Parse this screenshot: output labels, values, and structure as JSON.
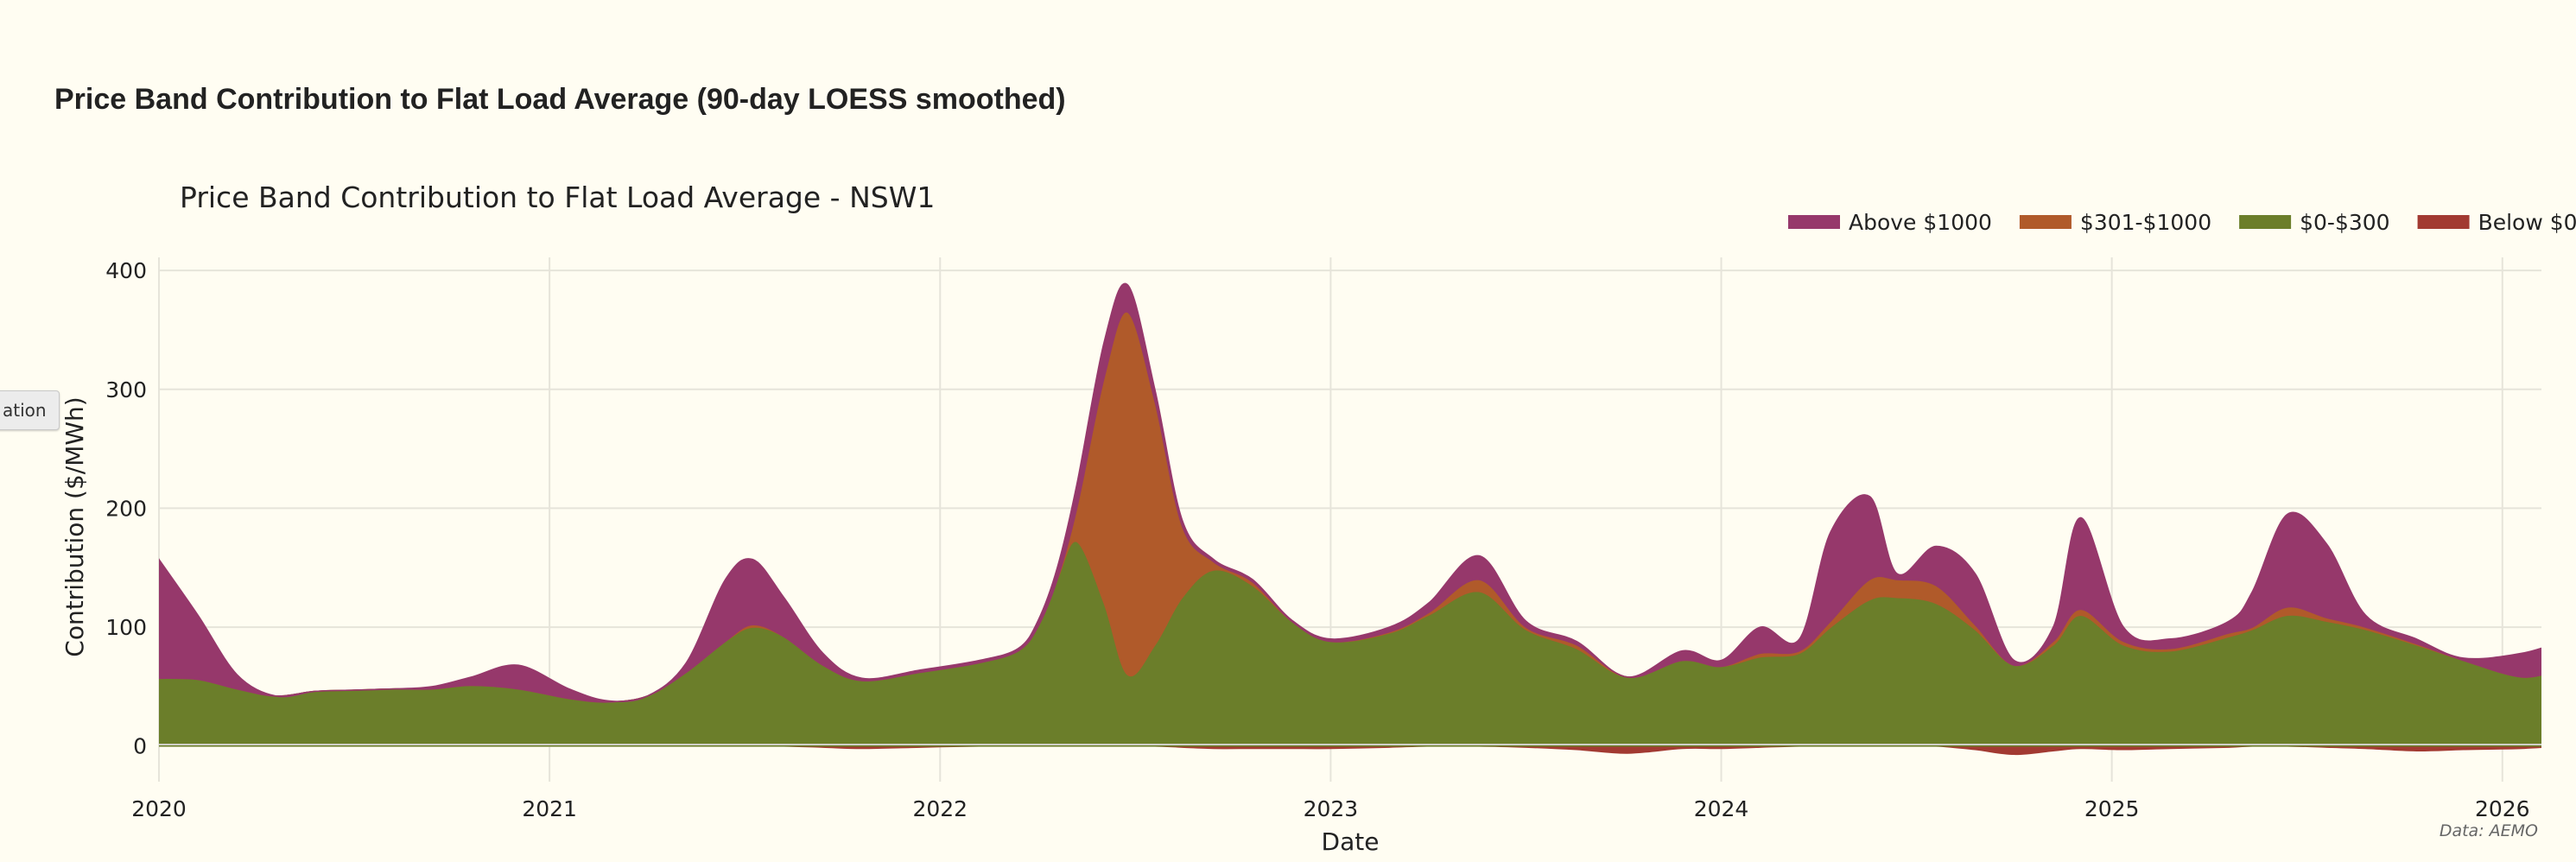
{
  "page": {
    "heading": "Price Band Contribution to Flat Load Average (90-day LOESS smoothed)",
    "side_button": "ation"
  },
  "chart_data": {
    "type": "area",
    "stacked": true,
    "title": "Price Band Contribution to Flat Load Average - NSW1",
    "xlabel": "Date",
    "ylabel": "Contribution ($/MWh)",
    "source": "Data: AEMO",
    "xlim": [
      2020,
      2026.1
    ],
    "ylim": [
      -30,
      411
    ],
    "grid": true,
    "legend_position": "top-right",
    "x_ticks": [
      {
        "v": 2020,
        "label": "2020"
      },
      {
        "v": 2021,
        "label": "2021"
      },
      {
        "v": 2022,
        "label": "2022"
      },
      {
        "v": 2023,
        "label": "2023"
      },
      {
        "v": 2024,
        "label": "2024"
      },
      {
        "v": 2025,
        "label": "2025"
      },
      {
        "v": 2026,
        "label": "2026"
      }
    ],
    "y_ticks": [
      {
        "v": 0,
        "label": "0"
      },
      {
        "v": 100,
        "label": "100"
      },
      {
        "v": 200,
        "label": "200"
      },
      {
        "v": 300,
        "label": "300"
      },
      {
        "v": 400,
        "label": "400"
      }
    ],
    "x": [
      2020.0,
      2020.1,
      2020.2,
      2020.3,
      2020.4,
      2020.5,
      2020.6,
      2020.7,
      2020.8,
      2020.92,
      2021.05,
      2021.15,
      2021.25,
      2021.35,
      2021.45,
      2021.52,
      2021.6,
      2021.7,
      2021.8,
      2021.95,
      2022.1,
      2022.2,
      2022.25,
      2022.3,
      2022.35,
      2022.42,
      2022.48,
      2022.55,
      2022.62,
      2022.7,
      2022.8,
      2022.9,
      2023.0,
      2023.15,
      2023.25,
      2023.38,
      2023.5,
      2023.63,
      2023.76,
      2023.9,
      2024.0,
      2024.1,
      2024.2,
      2024.28,
      2024.38,
      2024.45,
      2024.55,
      2024.65,
      2024.75,
      2024.85,
      2024.92,
      2025.03,
      2025.15,
      2025.3,
      2025.36,
      2025.45,
      2025.55,
      2025.65,
      2025.78,
      2025.9,
      2026.05,
      2026.15
    ],
    "series": [
      {
        "name": "Below $0",
        "color": "#a23a32",
        "values": [
          0,
          0,
          0,
          0,
          0,
          0,
          0,
          0,
          0,
          0,
          0,
          0,
          0,
          0,
          0,
          0,
          0,
          -1,
          -2,
          -1,
          0,
          0,
          0,
          0,
          0,
          0,
          0,
          0,
          -1,
          -2,
          -2,
          -2,
          -2,
          -1,
          0,
          0,
          -1,
          -3,
          -6,
          -2,
          -2,
          -1,
          0,
          0,
          0,
          0,
          0,
          -3,
          -7,
          -4,
          -2,
          -3,
          -2,
          -1,
          0,
          0,
          -1,
          -2,
          -4,
          -3,
          -2,
          0
        ]
      },
      {
        "name": "$0-$300",
        "color": "#6b7e2a",
        "values": [
          57,
          56,
          48,
          42,
          46,
          47,
          48,
          48,
          51,
          48,
          40,
          37,
          42,
          62,
          88,
          100,
          92,
          68,
          55,
          62,
          70,
          80,
          100,
          140,
          172,
          120,
          60,
          85,
          125,
          148,
          135,
          105,
          88,
          95,
          110,
          130,
          98,
          82,
          58,
          72,
          67,
          75,
          78,
          100,
          123,
          125,
          120,
          98,
          68,
          85,
          110,
          85,
          80,
          92,
          98,
          110,
          105,
          98,
          85,
          72,
          58,
          65
        ]
      },
      {
        "name": "$301-$1000",
        "color": "#b05a2a",
        "values": [
          0,
          0,
          0,
          0,
          0,
          0,
          0,
          0,
          0,
          0,
          0,
          0,
          0,
          0,
          0,
          2,
          0,
          0,
          0,
          0,
          0,
          0,
          0,
          0,
          28,
          190,
          305,
          205,
          60,
          7,
          3,
          0,
          0,
          1,
          2,
          10,
          2,
          3,
          0,
          0,
          0,
          3,
          2,
          5,
          17,
          15,
          15,
          4,
          0,
          3,
          5,
          3,
          2,
          3,
          2,
          7,
          3,
          2,
          1,
          0,
          0,
          0
        ]
      },
      {
        "name": "Above $1000",
        "color": "#96386b",
        "values": [
          100,
          54,
          12,
          0,
          0,
          0,
          0,
          2,
          7,
          20,
          8,
          1,
          0,
          8,
          52,
          55,
          33,
          10,
          2,
          2,
          2,
          2,
          5,
          10,
          20,
          30,
          23,
          10,
          5,
          2,
          2,
          1,
          2,
          4,
          8,
          20,
          5,
          3,
          0,
          8,
          5,
          22,
          10,
          75,
          70,
          5,
          33,
          43,
          4,
          12,
          77,
          12,
          8,
          10,
          30,
          78,
          62,
          10,
          4,
          2,
          20,
          23
        ]
      }
    ],
    "legend": [
      {
        "label": "Above $1000",
        "color": "#96386b"
      },
      {
        "label": "$301-$1000",
        "color": "#b05a2a"
      },
      {
        "label": "$0-$300",
        "color": "#6b7e2a"
      },
      {
        "label": "Below $0",
        "color": "#a23a32"
      }
    ]
  }
}
